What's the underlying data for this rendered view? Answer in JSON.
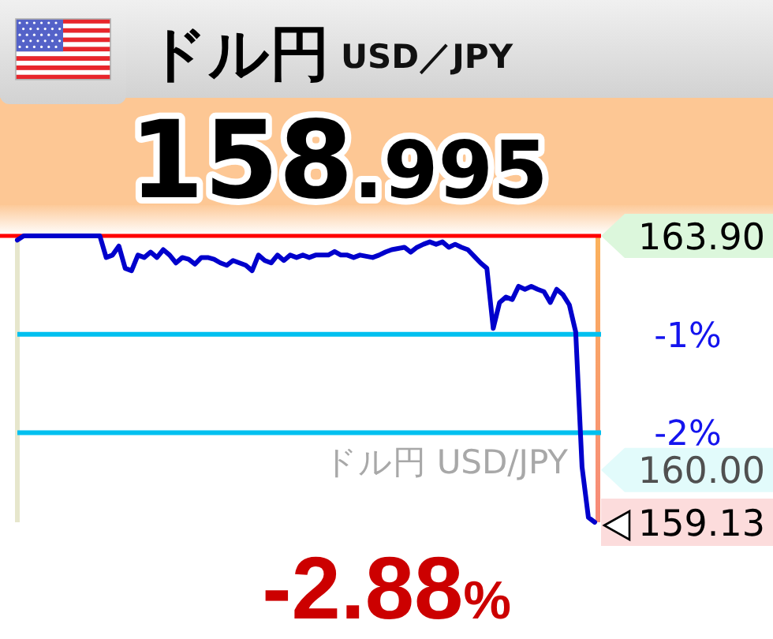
{
  "chart_data": {
    "type": "line",
    "title": "ドル円",
    "subtitle": "USD／JPY",
    "categories": [
      null,
      null,
      null,
      null,
      null,
      null,
      null,
      null,
      null,
      null,
      null,
      null,
      null,
      null,
      null,
      null,
      null,
      null,
      null,
      null,
      null,
      null,
      null,
      null,
      null,
      null,
      null,
      null,
      null,
      null,
      null,
      null,
      null,
      null,
      null,
      null,
      null,
      null,
      null,
      null,
      null,
      null,
      null,
      null,
      null,
      null,
      null,
      null,
      null,
      null,
      null,
      null,
      null,
      null,
      null,
      null,
      null,
      null,
      null,
      null,
      null,
      null,
      null,
      null,
      null,
      null,
      null,
      null,
      null,
      null,
      null,
      null,
      null,
      null,
      null,
      null,
      null,
      null,
      null,
      null,
      null,
      null,
      null,
      null,
      null,
      null,
      null,
      null,
      null,
      null,
      null,
      null
    ],
    "series": [
      {
        "color": "#0000cc",
        "values": [
          163.83,
          163.9,
          163.9,
          163.9,
          163.9,
          163.9,
          163.9,
          163.9,
          163.9,
          163.9,
          163.9,
          163.9,
          163.9,
          163.9,
          163.54,
          163.58,
          163.73,
          163.36,
          163.32,
          163.58,
          163.54,
          163.63,
          163.54,
          163.67,
          163.58,
          163.45,
          163.54,
          163.51,
          163.43,
          163.54,
          163.54,
          163.51,
          163.45,
          163.41,
          163.49,
          163.45,
          163.41,
          163.32,
          163.58,
          163.49,
          163.45,
          163.58,
          163.49,
          163.58,
          163.54,
          163.58,
          163.54,
          163.58,
          163.58,
          163.58,
          163.64,
          163.58,
          163.58,
          163.54,
          163.58,
          163.56,
          163.54,
          163.58,
          163.63,
          163.67,
          163.69,
          163.71,
          163.63,
          163.71,
          163.76,
          163.8,
          163.76,
          163.8,
          163.71,
          163.76,
          163.71,
          163.67,
          163.56,
          163.45,
          163.36,
          162.36,
          162.79,
          162.88,
          162.84,
          163.06,
          163.01,
          163.06,
          163.01,
          162.97,
          162.79,
          163.01,
          162.92,
          162.75,
          162.3,
          160.05,
          159.21,
          159.13
        ]
      }
    ],
    "ylim": [
      159.13,
      163.9
    ],
    "yticks": [
      {
        "value": 163.9,
        "label": "163.90"
      },
      {
        "value": 160,
        "label": "160.00"
      },
      {
        "value": 159.13,
        "label": "159.13"
      }
    ],
    "y2lim": [
      -2.91,
      0
    ],
    "y2ticks": [
      {
        "value": -1,
        "label": "-1%"
      },
      {
        "value": -2,
        "label": "-2%"
      }
    ],
    "ref_lines": [
      {
        "axis": "y",
        "value": 163.9,
        "color": "#ff0000"
      },
      {
        "axis": "y2",
        "value": -1,
        "color": "#00c0f0"
      },
      {
        "axis": "y2",
        "value": -2,
        "color": "#00c0f0"
      }
    ],
    "annotations": [
      "158.995",
      "-2.88%",
      "ドル円 USD/JPY"
    ]
  }
}
